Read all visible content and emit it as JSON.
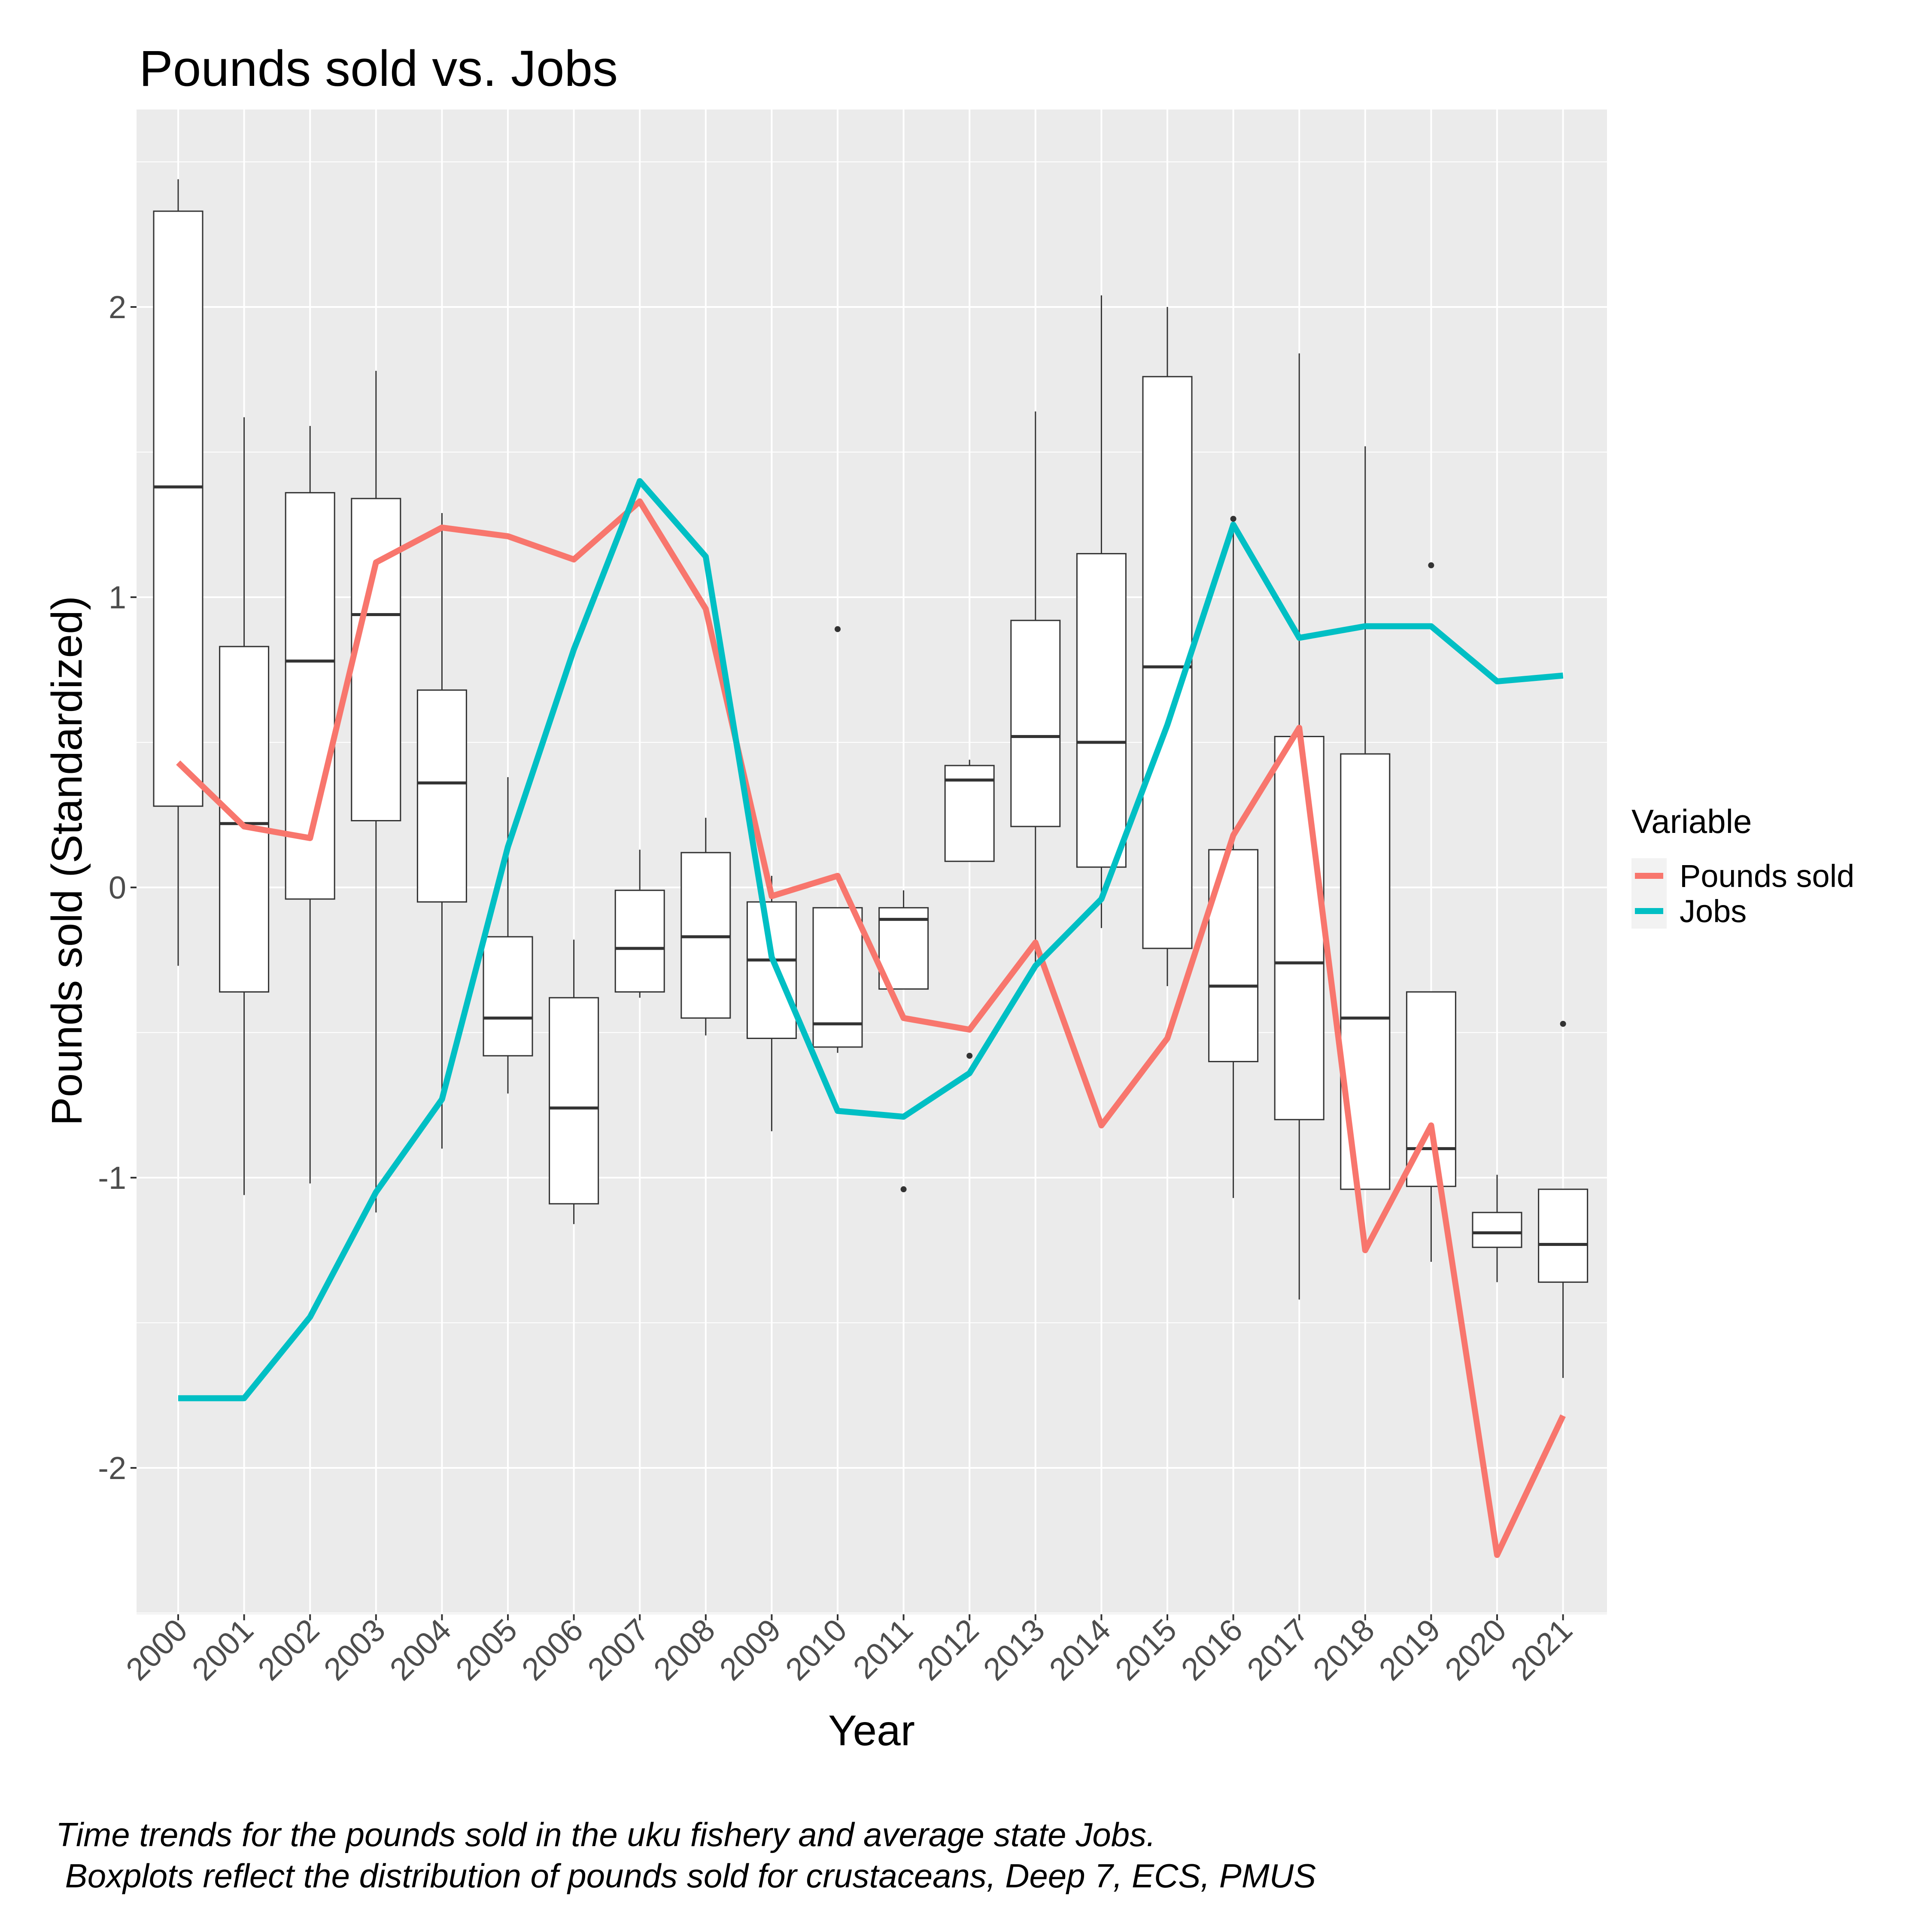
{
  "chart_data": {
    "type": "box+line",
    "title": "Pounds sold vs. Jobs",
    "xlabel": "Year",
    "ylabel": "Pounds sold (Standardized)",
    "ylim": [
      -2.5,
      2.6
    ],
    "yticks": [
      -2,
      -1,
      0,
      1,
      2
    ],
    "ytick_labels": [
      "-2",
      "-1",
      "0",
      "1",
      "2"
    ],
    "categories": [
      "2000",
      "2001",
      "2002",
      "2003",
      "2004",
      "2005",
      "2006",
      "2007",
      "2008",
      "2009",
      "2010",
      "2011",
      "2012",
      "2013",
      "2014",
      "2015",
      "2016",
      "2017",
      "2018",
      "2019",
      "2020",
      "2021"
    ],
    "grid": true,
    "legend": {
      "title": "Variable",
      "position": "right",
      "entries": [
        {
          "name": "Pounds sold",
          "color": "#F8766D"
        },
        {
          "name": "Jobs",
          "color": "#00BFC4"
        }
      ]
    },
    "boxplots": [
      {
        "x": "2000",
        "lo": -0.27,
        "q1": 0.28,
        "med": 1.38,
        "q3": 2.33,
        "hi": 2.44,
        "outliers": []
      },
      {
        "x": "2001",
        "lo": -1.06,
        "q1": -0.36,
        "med": 0.22,
        "q3": 0.83,
        "hi": 1.62,
        "outliers": []
      },
      {
        "x": "2002",
        "lo": -1.02,
        "q1": -0.04,
        "med": 0.78,
        "q3": 1.36,
        "hi": 1.59,
        "outliers": []
      },
      {
        "x": "2003",
        "lo": -1.12,
        "q1": 0.23,
        "med": 0.94,
        "q3": 1.34,
        "hi": 1.78,
        "outliers": []
      },
      {
        "x": "2004",
        "lo": -0.9,
        "q1": -0.05,
        "med": 0.36,
        "q3": 0.68,
        "hi": 1.29,
        "outliers": []
      },
      {
        "x": "2005",
        "lo": -0.71,
        "q1": -0.58,
        "med": -0.45,
        "q3": -0.17,
        "hi": 0.38,
        "outliers": []
      },
      {
        "x": "2006",
        "lo": -1.16,
        "q1": -1.09,
        "med": -0.76,
        "q3": -0.38,
        "hi": -0.18,
        "outliers": []
      },
      {
        "x": "2007",
        "lo": -0.38,
        "q1": -0.36,
        "med": -0.21,
        "q3": -0.01,
        "hi": 0.13,
        "outliers": []
      },
      {
        "x": "2008",
        "lo": -0.51,
        "q1": -0.45,
        "med": -0.17,
        "q3": 0.12,
        "hi": 0.24,
        "outliers": []
      },
      {
        "x": "2009",
        "lo": -0.84,
        "q1": -0.52,
        "med": -0.25,
        "q3": -0.05,
        "hi": 0.04,
        "outliers": []
      },
      {
        "x": "2010",
        "lo": -0.57,
        "q1": -0.55,
        "med": -0.47,
        "q3": -0.07,
        "hi": -0.07,
        "outliers": [
          0.89
        ]
      },
      {
        "x": "2011",
        "lo": -0.35,
        "q1": -0.35,
        "med": -0.11,
        "q3": -0.07,
        "hi": -0.01,
        "outliers": [
          -1.04
        ]
      },
      {
        "x": "2012",
        "lo": 0.09,
        "q1": 0.09,
        "med": 0.37,
        "q3": 0.42,
        "hi": 0.44,
        "outliers": [
          -0.58
        ]
      },
      {
        "x": "2013",
        "lo": -0.26,
        "q1": 0.21,
        "med": 0.52,
        "q3": 0.92,
        "hi": 1.64,
        "outliers": []
      },
      {
        "x": "2014",
        "lo": -0.14,
        "q1": 0.07,
        "med": 0.5,
        "q3": 1.15,
        "hi": 2.04,
        "outliers": []
      },
      {
        "x": "2015",
        "lo": -0.34,
        "q1": -0.21,
        "med": 0.76,
        "q3": 1.76,
        "hi": 2.0,
        "outliers": []
      },
      {
        "x": "2016",
        "lo": -1.07,
        "q1": -0.6,
        "med": -0.34,
        "q3": 0.13,
        "hi": 1.26,
        "outliers": [
          1.27
        ]
      },
      {
        "x": "2017",
        "lo": -1.42,
        "q1": -0.8,
        "med": -0.26,
        "q3": 0.52,
        "hi": 1.84,
        "outliers": []
      },
      {
        "x": "2018",
        "lo": -1.04,
        "q1": -1.04,
        "med": -0.45,
        "q3": 0.46,
        "hi": 1.52,
        "outliers": []
      },
      {
        "x": "2019",
        "lo": -1.29,
        "q1": -1.03,
        "med": -0.9,
        "q3": -0.36,
        "hi": -0.36,
        "outliers": [
          1.11
        ]
      },
      {
        "x": "2020",
        "lo": -1.36,
        "q1": -1.24,
        "med": -1.19,
        "q3": -1.12,
        "hi": -0.99,
        "outliers": []
      },
      {
        "x": "2021",
        "lo": -1.69,
        "q1": -1.36,
        "med": -1.23,
        "q3": -1.04,
        "hi": -1.04,
        "outliers": [
          -0.47
        ]
      }
    ],
    "series": [
      {
        "name": "Pounds sold",
        "color": "#F8766D",
        "values": [
          0.43,
          0.21,
          0.17,
          1.12,
          1.24,
          1.21,
          1.13,
          1.33,
          0.96,
          -0.03,
          0.04,
          -0.45,
          -0.49,
          -0.19,
          -0.82,
          -0.52,
          0.18,
          0.55,
          -1.25,
          -0.82,
          -2.3,
          -1.82
        ]
      },
      {
        "name": "Jobs",
        "color": "#00BFC4",
        "values": [
          -1.76,
          -1.76,
          -1.48,
          -1.05,
          -0.73,
          0.14,
          0.82,
          1.4,
          1.14,
          -0.24,
          -0.77,
          -0.79,
          -0.64,
          -0.27,
          -0.04,
          0.56,
          1.25,
          0.86,
          0.9,
          0.9,
          0.71,
          0.73
        ]
      }
    ]
  },
  "caption": "Time trends for the pounds sold in the uku fishery and average state Jobs.\n Boxplots reflect the distribution of pounds sold for crustaceans, Deep 7, ECS, PMUS"
}
